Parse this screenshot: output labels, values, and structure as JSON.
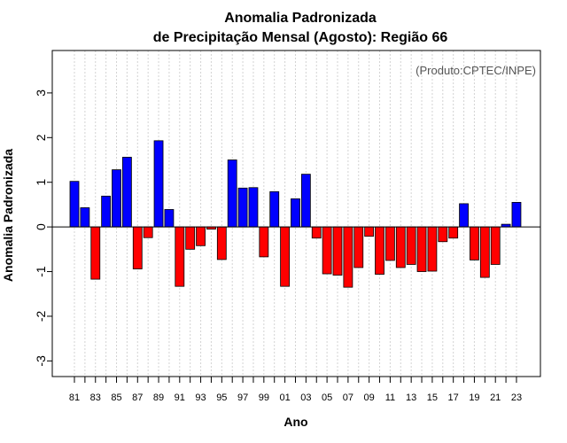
{
  "chart_data": {
    "type": "bar",
    "title_line1": "Anomalia Padronizada",
    "title_line2": "de Precipitação Mensal (Agosto): Região 66",
    "xlabel": "Ano",
    "ylabel": "Anomalia Padronizada",
    "source": "(Produto:CPTEC/INPE)",
    "ylim": [
      -3.35,
      3.95
    ],
    "yticks": [
      -3,
      -2,
      -1,
      0,
      1,
      2,
      3
    ],
    "ytick_labels": [
      "-3",
      "-2",
      "-1",
      "0",
      "1",
      "2",
      "3"
    ],
    "grid": true,
    "positive_color": "#0000ff",
    "negative_color": "#ff0000",
    "categories": [
      "81",
      "82",
      "83",
      "84",
      "85",
      "86",
      "87",
      "88",
      "89",
      "90",
      "91",
      "92",
      "93",
      "94",
      "95",
      "96",
      "97",
      "98",
      "99",
      "00",
      "01",
      "02",
      "03",
      "04",
      "05",
      "06",
      "07",
      "08",
      "09",
      "10",
      "11",
      "12",
      "13",
      "14",
      "15",
      "16",
      "17",
      "18",
      "19",
      "20",
      "21",
      "22",
      "23"
    ],
    "xtick_labels": [
      "81",
      "83",
      "85",
      "87",
      "89",
      "91",
      "93",
      "95",
      "97",
      "99",
      "01",
      "03",
      "05",
      "07",
      "09",
      "11",
      "13",
      "15",
      "17",
      "19",
      "21",
      "23"
    ],
    "values": [
      1.02,
      0.43,
      -1.17,
      0.69,
      1.28,
      1.56,
      -0.94,
      -0.24,
      1.93,
      0.39,
      -1.33,
      -0.5,
      -0.42,
      -0.05,
      -0.73,
      1.5,
      0.87,
      0.88,
      -0.67,
      0.79,
      -1.33,
      0.63,
      1.18,
      -0.25,
      -1.05,
      -1.08,
      -1.35,
      -0.91,
      -0.21,
      -1.06,
      -0.75,
      -0.91,
      -0.84,
      -1.0,
      -0.99,
      -0.33,
      -0.25,
      0.52,
      -0.74,
      -1.13,
      -0.84,
      0.06,
      0.55
    ]
  }
}
